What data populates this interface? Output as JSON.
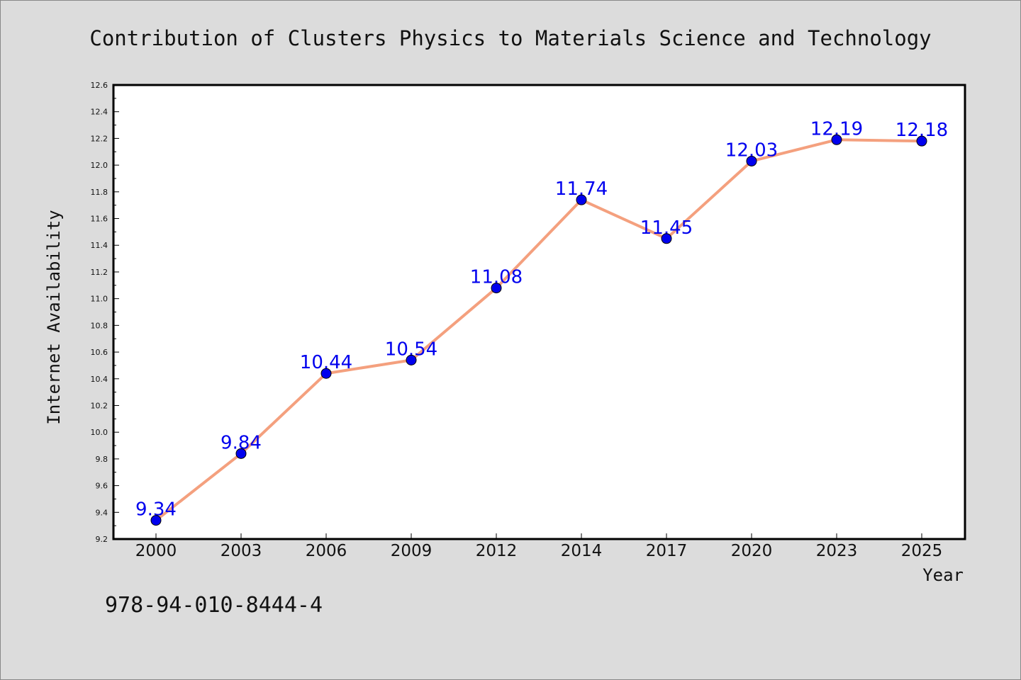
{
  "chart_data": {
    "type": "line",
    "title": "Contribution of Clusters Physics to Materials Science and Technology",
    "xlabel": "Year",
    "ylabel": "Internet Availability",
    "categories": [
      "2000",
      "2003",
      "2006",
      "2009",
      "2012",
      "2014",
      "2017",
      "2020",
      "2023",
      "2025"
    ],
    "series": [
      {
        "values": [
          9.34,
          9.84,
          10.44,
          10.54,
          11.08,
          11.74,
          11.45,
          12.03,
          12.19,
          12.18
        ],
        "line_color": "#f4a07e",
        "marker_color": "#0000ee",
        "label_color": "#0000ee"
      }
    ],
    "data_labels": [
      "9.34",
      "9.84",
      "10.44",
      "10.54",
      "11.08",
      "11.74",
      "11.45",
      "12.03",
      "12.19",
      "12.18"
    ],
    "ylim": [
      9.2,
      12.6
    ],
    "yticks": [
      "9.2",
      "9.4",
      "9.6",
      "9.8",
      "10.0",
      "10.2",
      "10.4",
      "10.6",
      "10.8",
      "11.0",
      "11.2",
      "11.4",
      "11.6",
      "11.8",
      "12.0",
      "12.2",
      "12.4",
      "12.6"
    ],
    "grid": false,
    "legend": "none"
  },
  "annotation": {
    "isbn": "978-94-010-8444-4"
  }
}
